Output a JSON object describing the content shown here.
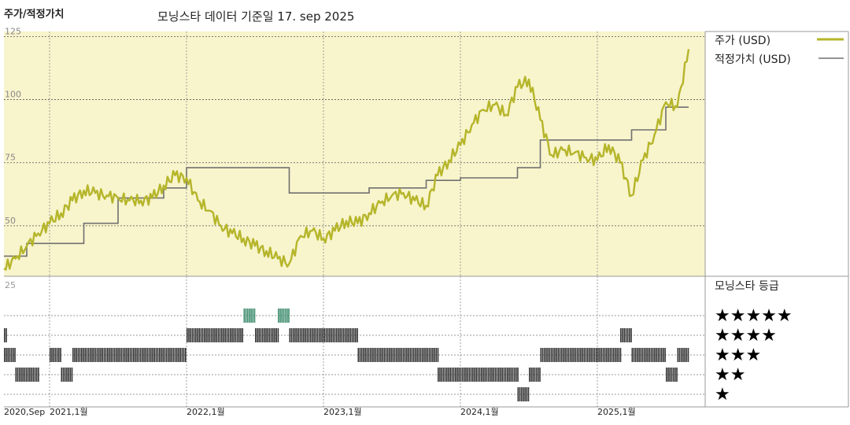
{
  "header": {
    "left_title": "주가/적정가치",
    "subtitle": "모닝스타 데이터 기준일 17. sep 2025"
  },
  "legend": {
    "price_label": "주가 (USD)",
    "fair_value_label": "적정가치 (USD)",
    "price_color": "#b5b52a",
    "fair_value_color": "#707070"
  },
  "rating_panel": {
    "title": "모닝스타 등급",
    "stars": [
      "★★★★★",
      "★★★★",
      "★★★",
      "★★",
      "★"
    ],
    "top_tick": "25",
    "color_5": "#3c8c6c",
    "color_default": "#333333"
  },
  "chart_data": {
    "type": "line",
    "x_axis": {
      "labels": [
        "2020,Sep",
        "2021,1월",
        "2022,1월",
        "2023,1월",
        "2024,1월",
        "2025,1월"
      ],
      "label_dates": [
        "2020-09",
        "2021-01",
        "2022-01",
        "2023-01",
        "2024-01",
        "2025-01"
      ]
    },
    "y_axis": {
      "ticks": [
        50,
        75,
        100,
        125
      ],
      "ylim": [
        30,
        127
      ]
    },
    "background_color": "#f8f4cc",
    "series": [
      {
        "name": "주가 (USD)",
        "dates": [
          "2020-09",
          "2020-10",
          "2020-11",
          "2020-12",
          "2021-01",
          "2021-02",
          "2021-03",
          "2021-04",
          "2021-05",
          "2021-06",
          "2021-07",
          "2021-08",
          "2021-09",
          "2021-10",
          "2021-11",
          "2021-12",
          "2022-01",
          "2022-02",
          "2022-03",
          "2022-04",
          "2022-05",
          "2022-06",
          "2022-07",
          "2022-08",
          "2022-09",
          "2022-10",
          "2022-11",
          "2022-12",
          "2023-01",
          "2023-02",
          "2023-03",
          "2023-04",
          "2023-05",
          "2023-06",
          "2023-07",
          "2023-08",
          "2023-09",
          "2023-10",
          "2023-11",
          "2023-12",
          "2024-01",
          "2024-02",
          "2024-03",
          "2024-04",
          "2024-05",
          "2024-06",
          "2024-07",
          "2024-08",
          "2024-09",
          "2024-10",
          "2024-11",
          "2024-12",
          "2025-01",
          "2025-02",
          "2025-03",
          "2025-04",
          "2025-05",
          "2025-06",
          "2025-07",
          "2025-08",
          "2025-09"
        ],
        "values": [
          33,
          37,
          42,
          47,
          51,
          55,
          60,
          64,
          63,
          62,
          61,
          60,
          60,
          61,
          66,
          70,
          69,
          60,
          56,
          50,
          47,
          45,
          42,
          40,
          37,
          35,
          46,
          48,
          45,
          48,
          52,
          51,
          55,
          59,
          62,
          63,
          60,
          58,
          70,
          76,
          82,
          90,
          96,
          98,
          94,
          105,
          108,
          92,
          78,
          80,
          79,
          77,
          76,
          82,
          75,
          62,
          76,
          86,
          99,
          97,
          120
        ]
      },
      {
        "name": "적정가치 (USD)",
        "dates": [
          "2020-09",
          "2020-11",
          "2021-02",
          "2021-04",
          "2021-07",
          "2021-11",
          "2022-01",
          "2022-08",
          "2022-10",
          "2023-05",
          "2023-10",
          "2024-01",
          "2024-06",
          "2024-08",
          "2025-01",
          "2025-04",
          "2025-07",
          "2025-09"
        ],
        "values": [
          38,
          43,
          43,
          51,
          61,
          65,
          73,
          73,
          63,
          65,
          68,
          69,
          73,
          84,
          84,
          88,
          97,
          97
        ]
      }
    ],
    "ratings": {
      "description": "Morningstar star rating over time (5 = top row, 1 = bottom row)",
      "segments": [
        {
          "start": "2020-09",
          "end": "2020-09",
          "stars": 4
        },
        {
          "start": "2020-09",
          "end": "2020-10",
          "stars": 3
        },
        {
          "start": "2020-10",
          "end": "2020-12",
          "stars": 2
        },
        {
          "start": "2021-01",
          "end": "2021-02",
          "stars": 3
        },
        {
          "start": "2021-02",
          "end": "2021-03",
          "stars": 2
        },
        {
          "start": "2021-03",
          "end": "2022-01",
          "stars": 3
        },
        {
          "start": "2022-01",
          "end": "2022-06",
          "stars": 4
        },
        {
          "start": "2022-06",
          "end": "2022-07",
          "stars": 5
        },
        {
          "start": "2022-07",
          "end": "2022-09",
          "stars": 4
        },
        {
          "start": "2022-09",
          "end": "2022-10",
          "stars": 5
        },
        {
          "start": "2022-10",
          "end": "2023-04",
          "stars": 4
        },
        {
          "start": "2023-04",
          "end": "2023-11",
          "stars": 3
        },
        {
          "start": "2023-11",
          "end": "2024-06",
          "stars": 2
        },
        {
          "start": "2024-06",
          "end": "2024-07",
          "stars": 1
        },
        {
          "start": "2024-07",
          "end": "2024-08",
          "stars": 2
        },
        {
          "start": "2024-08",
          "end": "2025-03",
          "stars": 3
        },
        {
          "start": "2025-03",
          "end": "2025-04",
          "stars": 4
        },
        {
          "start": "2025-04",
          "end": "2025-07",
          "stars": 3
        },
        {
          "start": "2025-07",
          "end": "2025-08",
          "stars": 2
        },
        {
          "start": "2025-08",
          "end": "2025-09",
          "stars": 3
        }
      ]
    }
  }
}
